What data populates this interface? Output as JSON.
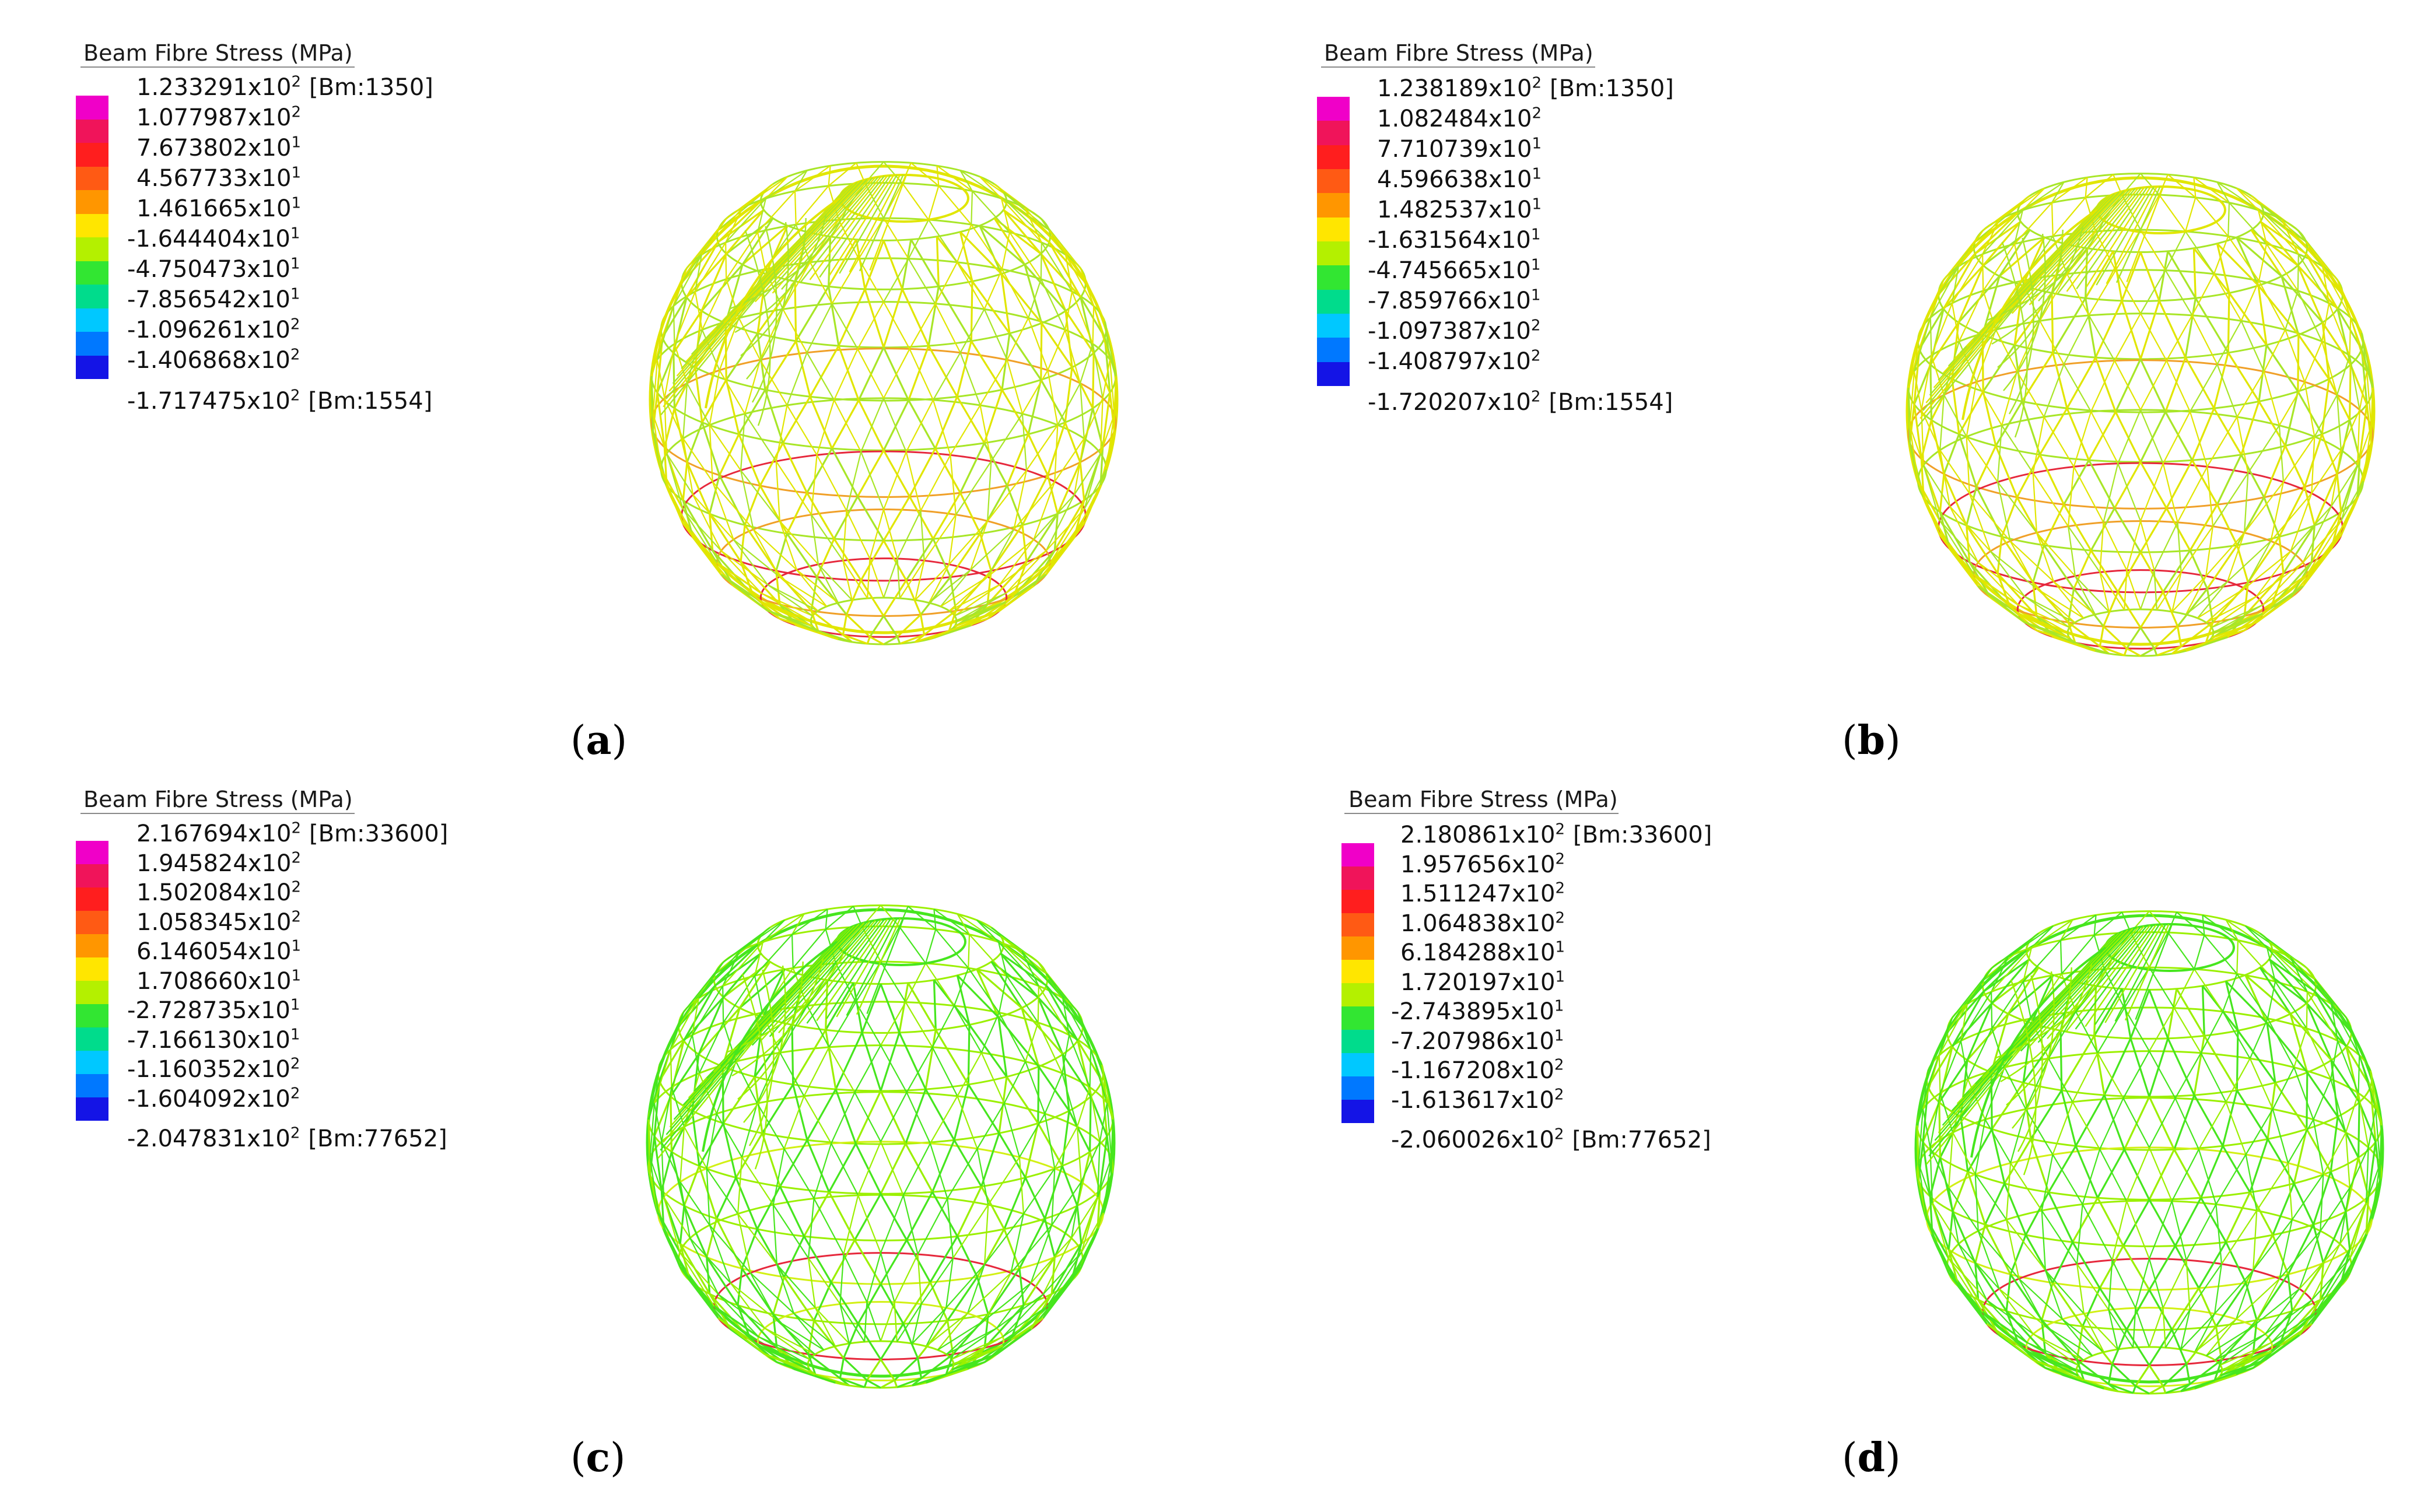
{
  "panels": [
    {
      "id": "a",
      "caption_letter": "a",
      "legend_title": "Beam Fibre Stress  (MPa)",
      "legend_values": [
        {
          "mant": "1.233291",
          "exp": "2",
          "note": "[Bm:1350]"
        },
        {
          "mant": "1.077987",
          "exp": "2",
          "note": ""
        },
        {
          "mant": "7.673802",
          "exp": "1",
          "note": ""
        },
        {
          "mant": "4.567733",
          "exp": "1",
          "note": ""
        },
        {
          "mant": "1.461665",
          "exp": "1",
          "note": ""
        },
        {
          "mant": "-1.644404",
          "exp": "1",
          "note": ""
        },
        {
          "mant": "-4.750473",
          "exp": "1",
          "note": ""
        },
        {
          "mant": "-7.856542",
          "exp": "1",
          "note": ""
        },
        {
          "mant": "-1.096261",
          "exp": "2",
          "note": ""
        },
        {
          "mant": "-1.406868",
          "exp": "2",
          "note": ""
        },
        {
          "mant": "-1.717475",
          "exp": "2",
          "note": "[Bm:1554]"
        }
      ],
      "tone": "yellow"
    },
    {
      "id": "b",
      "caption_letter": "b",
      "legend_title": "Beam Fibre Stress  (MPa)",
      "legend_values": [
        {
          "mant": "1.238189",
          "exp": "2",
          "note": "[Bm:1350]"
        },
        {
          "mant": "1.082484",
          "exp": "2",
          "note": ""
        },
        {
          "mant": "7.710739",
          "exp": "1",
          "note": ""
        },
        {
          "mant": "4.596638",
          "exp": "1",
          "note": ""
        },
        {
          "mant": "1.482537",
          "exp": "1",
          "note": ""
        },
        {
          "mant": "-1.631564",
          "exp": "1",
          "note": ""
        },
        {
          "mant": "-4.745665",
          "exp": "1",
          "note": ""
        },
        {
          "mant": "-7.859766",
          "exp": "1",
          "note": ""
        },
        {
          "mant": "-1.097387",
          "exp": "2",
          "note": ""
        },
        {
          "mant": "-1.408797",
          "exp": "2",
          "note": ""
        },
        {
          "mant": "-1.720207",
          "exp": "2",
          "note": "[Bm:1554]"
        }
      ],
      "tone": "yellow"
    },
    {
      "id": "c",
      "caption_letter": "c",
      "legend_title": "Beam Fibre Stress  (MPa)",
      "legend_values": [
        {
          "mant": "2.167694",
          "exp": "2",
          "note": "[Bm:33600]"
        },
        {
          "mant": "1.945824",
          "exp": "2",
          "note": ""
        },
        {
          "mant": "1.502084",
          "exp": "2",
          "note": ""
        },
        {
          "mant": "1.058345",
          "exp": "2",
          "note": ""
        },
        {
          "mant": "6.146054",
          "exp": "1",
          "note": ""
        },
        {
          "mant": "1.708660",
          "exp": "1",
          "note": ""
        },
        {
          "mant": "-2.728735",
          "exp": "1",
          "note": ""
        },
        {
          "mant": "-7.166130",
          "exp": "1",
          "note": ""
        },
        {
          "mant": "-1.160352",
          "exp": "2",
          "note": ""
        },
        {
          "mant": "-1.604092",
          "exp": "2",
          "note": ""
        },
        {
          "mant": "-2.047831",
          "exp": "2",
          "note": "[Bm:77652]"
        }
      ],
      "tone": "green"
    },
    {
      "id": "d",
      "caption_letter": "d",
      "legend_title": "Beam Fibre Stress  (MPa)",
      "legend_values": [
        {
          "mant": "2.180861",
          "exp": "2",
          "note": "[Bm:33600]"
        },
        {
          "mant": "1.957656",
          "exp": "2",
          "note": ""
        },
        {
          "mant": "1.511247",
          "exp": "2",
          "note": ""
        },
        {
          "mant": "1.064838",
          "exp": "2",
          "note": ""
        },
        {
          "mant": "6.184288",
          "exp": "1",
          "note": ""
        },
        {
          "mant": "1.720197",
          "exp": "1",
          "note": ""
        },
        {
          "mant": "-2.743895",
          "exp": "1",
          "note": ""
        },
        {
          "mant": "-7.207986",
          "exp": "1",
          "note": ""
        },
        {
          "mant": "-1.167208",
          "exp": "2",
          "note": ""
        },
        {
          "mant": "-1.613617",
          "exp": "2",
          "note": ""
        },
        {
          "mant": "-2.060026",
          "exp": "2",
          "note": "[Bm:77652]"
        }
      ],
      "tone": "green"
    }
  ],
  "colorbar_colors": [
    "#f000c8",
    "#f0145a",
    "#ff1e1e",
    "#ff5a14",
    "#ff9600",
    "#ffe600",
    "#b4f000",
    "#32e632",
    "#00dc8c",
    "#00c8ff",
    "#0078ff",
    "#1414e6"
  ],
  "stroke_colors": {
    "yellow_main": "#e1e600",
    "yellow_green": "#a8e628",
    "orange": "#f0a028",
    "red": "#e6283c",
    "green_main": "#46e61e",
    "green_light": "#9bf000",
    "green_yellow": "#d2f014"
  }
}
